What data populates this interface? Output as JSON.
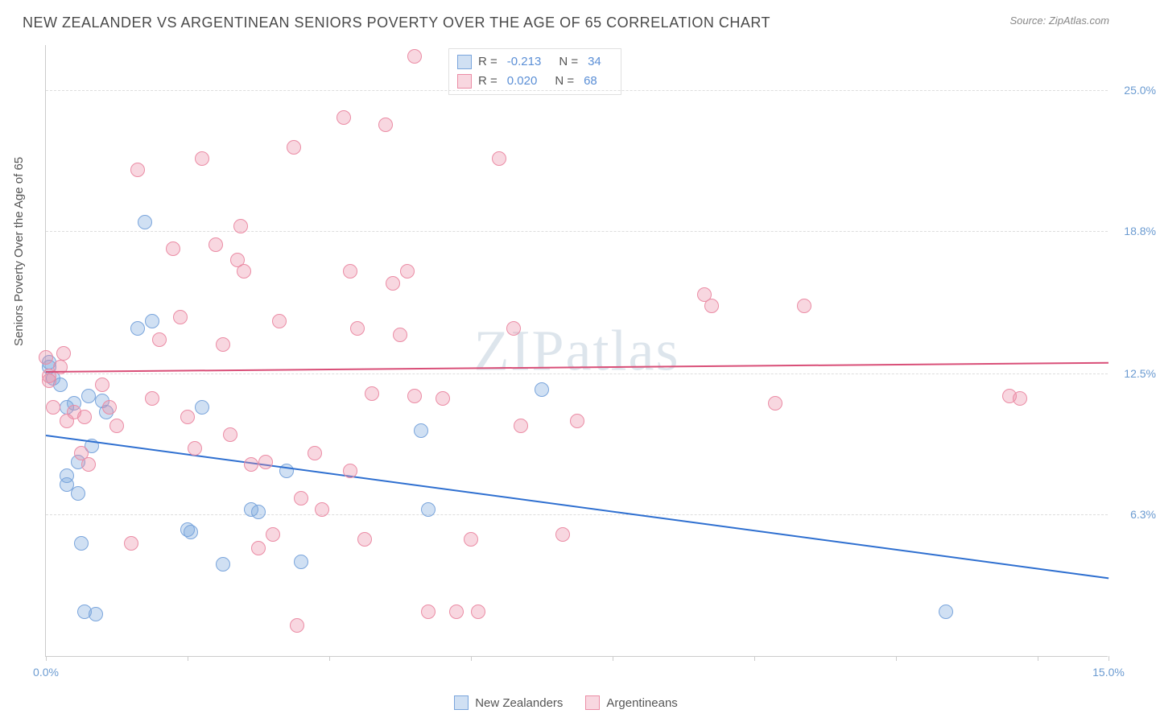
{
  "title": "NEW ZEALANDER VS ARGENTINEAN SENIORS POVERTY OVER THE AGE OF 65 CORRELATION CHART",
  "source": "Source: ZipAtlas.com",
  "ylabel": "Seniors Poverty Over the Age of 65",
  "watermark_a": "ZIP",
  "watermark_b": "atlas",
  "chart": {
    "type": "scatter",
    "xlim": [
      0,
      15
    ],
    "ylim": [
      0,
      27
    ],
    "x_ticks": [
      0,
      2,
      4,
      6,
      8,
      10,
      12,
      14,
      15
    ],
    "x_tick_labels": {
      "0": "0.0%",
      "15": "15.0%"
    },
    "y_ticks": [
      6.3,
      12.5,
      18.8,
      25.0
    ],
    "y_tick_labels": [
      "6.3%",
      "12.5%",
      "18.8%",
      "25.0%"
    ],
    "background": "#ffffff",
    "grid_color": "#dddddd",
    "axis_color": "#cccccc",
    "tick_label_color": "#6b9bd1",
    "series": [
      {
        "name": "New Zealanders",
        "fill": "rgba(120,165,220,0.35)",
        "stroke": "#7aa5dc",
        "marker_radius": 9,
        "trend": {
          "y_at_x0": 9.8,
          "y_at_xmax": 3.5,
          "color": "#2e6fd0",
          "width": 2
        },
        "R": "-0.213",
        "N": "34",
        "points": [
          [
            0.05,
            12.8
          ],
          [
            0.05,
            13.0
          ],
          [
            0.1,
            12.3
          ],
          [
            0.2,
            12.0
          ],
          [
            0.3,
            8.0
          ],
          [
            0.3,
            7.6
          ],
          [
            0.3,
            11.0
          ],
          [
            0.4,
            11.2
          ],
          [
            0.45,
            7.2
          ],
          [
            0.45,
            8.6
          ],
          [
            0.5,
            5.0
          ],
          [
            0.55,
            2.0
          ],
          [
            0.6,
            11.5
          ],
          [
            0.65,
            9.3
          ],
          [
            0.7,
            1.9
          ],
          [
            0.8,
            11.3
          ],
          [
            0.85,
            10.8
          ],
          [
            1.3,
            14.5
          ],
          [
            1.4,
            19.2
          ],
          [
            1.5,
            14.8
          ],
          [
            2.0,
            5.6
          ],
          [
            2.05,
            5.5
          ],
          [
            2.2,
            11.0
          ],
          [
            2.5,
            4.1
          ],
          [
            2.9,
            6.5
          ],
          [
            3.0,
            6.4
          ],
          [
            3.4,
            8.2
          ],
          [
            3.6,
            4.2
          ],
          [
            5.3,
            10.0
          ],
          [
            5.4,
            6.5
          ],
          [
            7.0,
            11.8
          ],
          [
            12.7,
            2.0
          ]
        ]
      },
      {
        "name": "Argentineans",
        "fill": "rgba(235,140,165,0.35)",
        "stroke": "#eb8ca5",
        "marker_radius": 9,
        "trend": {
          "y_at_x0": 12.6,
          "y_at_xmax": 13.0,
          "color": "#d94f78",
          "width": 2
        },
        "R": "0.020",
        "N": "68",
        "points": [
          [
            0.0,
            13.2
          ],
          [
            0.05,
            12.4
          ],
          [
            0.05,
            12.2
          ],
          [
            0.1,
            11.0
          ],
          [
            0.2,
            12.8
          ],
          [
            0.25,
            13.4
          ],
          [
            0.3,
            10.4
          ],
          [
            0.4,
            10.8
          ],
          [
            0.5,
            9.0
          ],
          [
            0.55,
            10.6
          ],
          [
            0.6,
            8.5
          ],
          [
            0.8,
            12.0
          ],
          [
            0.9,
            11.0
          ],
          [
            1.0,
            10.2
          ],
          [
            1.2,
            5.0
          ],
          [
            1.3,
            21.5
          ],
          [
            1.5,
            11.4
          ],
          [
            1.6,
            14.0
          ],
          [
            1.8,
            18.0
          ],
          [
            1.9,
            15.0
          ],
          [
            2.0,
            10.6
          ],
          [
            2.1,
            9.2
          ],
          [
            2.2,
            22.0
          ],
          [
            2.4,
            18.2
          ],
          [
            2.5,
            13.8
          ],
          [
            2.6,
            9.8
          ],
          [
            2.7,
            17.5
          ],
          [
            2.75,
            19.0
          ],
          [
            2.8,
            17.0
          ],
          [
            2.9,
            8.5
          ],
          [
            3.0,
            4.8
          ],
          [
            3.1,
            8.6
          ],
          [
            3.2,
            5.4
          ],
          [
            3.3,
            14.8
          ],
          [
            3.5,
            22.5
          ],
          [
            3.55,
            1.4
          ],
          [
            3.6,
            7.0
          ],
          [
            3.8,
            9.0
          ],
          [
            3.9,
            6.5
          ],
          [
            4.2,
            23.8
          ],
          [
            4.3,
            17.0
          ],
          [
            4.3,
            8.2
          ],
          [
            4.4,
            14.5
          ],
          [
            4.5,
            5.2
          ],
          [
            4.6,
            11.6
          ],
          [
            4.8,
            23.5
          ],
          [
            4.9,
            16.5
          ],
          [
            5.0,
            14.2
          ],
          [
            5.1,
            17.0
          ],
          [
            5.2,
            11.5
          ],
          [
            5.2,
            26.5
          ],
          [
            5.4,
            2.0
          ],
          [
            5.6,
            11.4
          ],
          [
            5.8,
            2.0
          ],
          [
            6.0,
            5.2
          ],
          [
            6.1,
            2.0
          ],
          [
            6.4,
            22.0
          ],
          [
            6.6,
            14.5
          ],
          [
            6.7,
            10.2
          ],
          [
            7.3,
            5.4
          ],
          [
            7.5,
            10.4
          ],
          [
            9.3,
            16.0
          ],
          [
            9.4,
            15.5
          ],
          [
            10.3,
            11.2
          ],
          [
            10.7,
            15.5
          ],
          [
            13.6,
            11.5
          ],
          [
            13.75,
            11.4
          ]
        ]
      }
    ],
    "legend_bottom": [
      {
        "label": "New Zealanders",
        "fill": "rgba(120,165,220,0.35)",
        "stroke": "#7aa5dc"
      },
      {
        "label": "Argentineans",
        "fill": "rgba(235,140,165,0.35)",
        "stroke": "#eb8ca5"
      }
    ]
  }
}
